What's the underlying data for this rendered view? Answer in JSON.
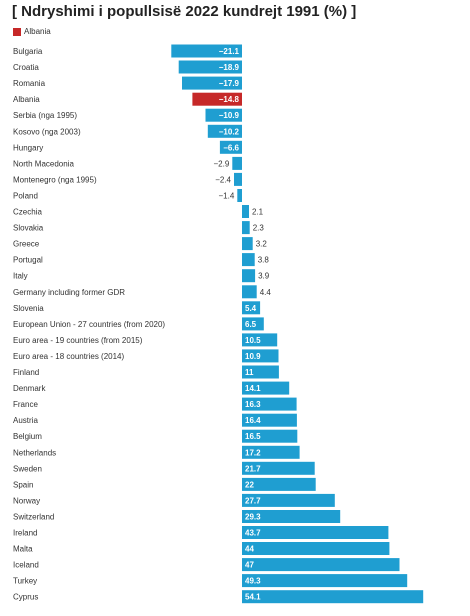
{
  "chart_data": {
    "type": "bar",
    "orientation": "horizontal",
    "title": "[ Ndryshimi i popullsisë 2022 kundrejt 1991 (%) ]",
    "legend": {
      "label": "Albania",
      "color": "#c62828",
      "position": "top-left"
    },
    "colors": {
      "default": "#1f9ed1",
      "highlight": "#c62828"
    },
    "highlight": "Albania",
    "xlim": [
      -21.1,
      54.1
    ],
    "grid": false,
    "categories": [
      "Bulgaria",
      "Croatia",
      "Romania",
      "Albania",
      "Serbia (nga 1995)",
      "Kosovo (nga 2003)",
      "Hungary",
      "North Macedonia",
      "Montenegro (nga 1995)",
      "Poland",
      "Czechia",
      "Slovakia",
      "Greece",
      "Portugal",
      "Italy",
      "Germany including former GDR",
      "Slovenia",
      "European Union - 27 countries (from 2020)",
      "Euro area - 19 countries (from 2015)",
      "Euro area - 18 countries (2014)",
      "Finland",
      "Denmark",
      "France",
      "Austria",
      "Belgium",
      "Netherlands",
      "Sweden",
      "Spain",
      "Norway",
      "Switzerland",
      "Ireland",
      "Malta",
      "Iceland",
      "Turkey",
      "Cyprus"
    ],
    "values": [
      -21.1,
      -18.9,
      -17.9,
      -14.8,
      -10.9,
      -10.2,
      -6.6,
      -2.9,
      -2.4,
      -1.4,
      2.1,
      2.3,
      3.2,
      3.8,
      3.9,
      4.4,
      5.4,
      6.5,
      10.5,
      10.9,
      11,
      14.1,
      16.3,
      16.4,
      16.5,
      17.2,
      21.7,
      22,
      27.7,
      29.3,
      43.7,
      44,
      47,
      49.3,
      54.1
    ],
    "labels": [
      "−21.1",
      "−18.9",
      "−17.9",
      "−14.8",
      "−10.9",
      "−10.2",
      "−6.6",
      "−2.9",
      "−2.4",
      "−1.4",
      "2.1",
      "2.3",
      "3.2",
      "3.8",
      "3.9",
      "4.4",
      "5.4",
      "6.5",
      "10.5",
      "10.9",
      "11",
      "14.1",
      "16.3",
      "16.4",
      "16.5",
      "17.2",
      "21.7",
      "22",
      "27.7",
      "29.3",
      "43.7",
      "44",
      "47",
      "49.3",
      "54.1"
    ]
  }
}
